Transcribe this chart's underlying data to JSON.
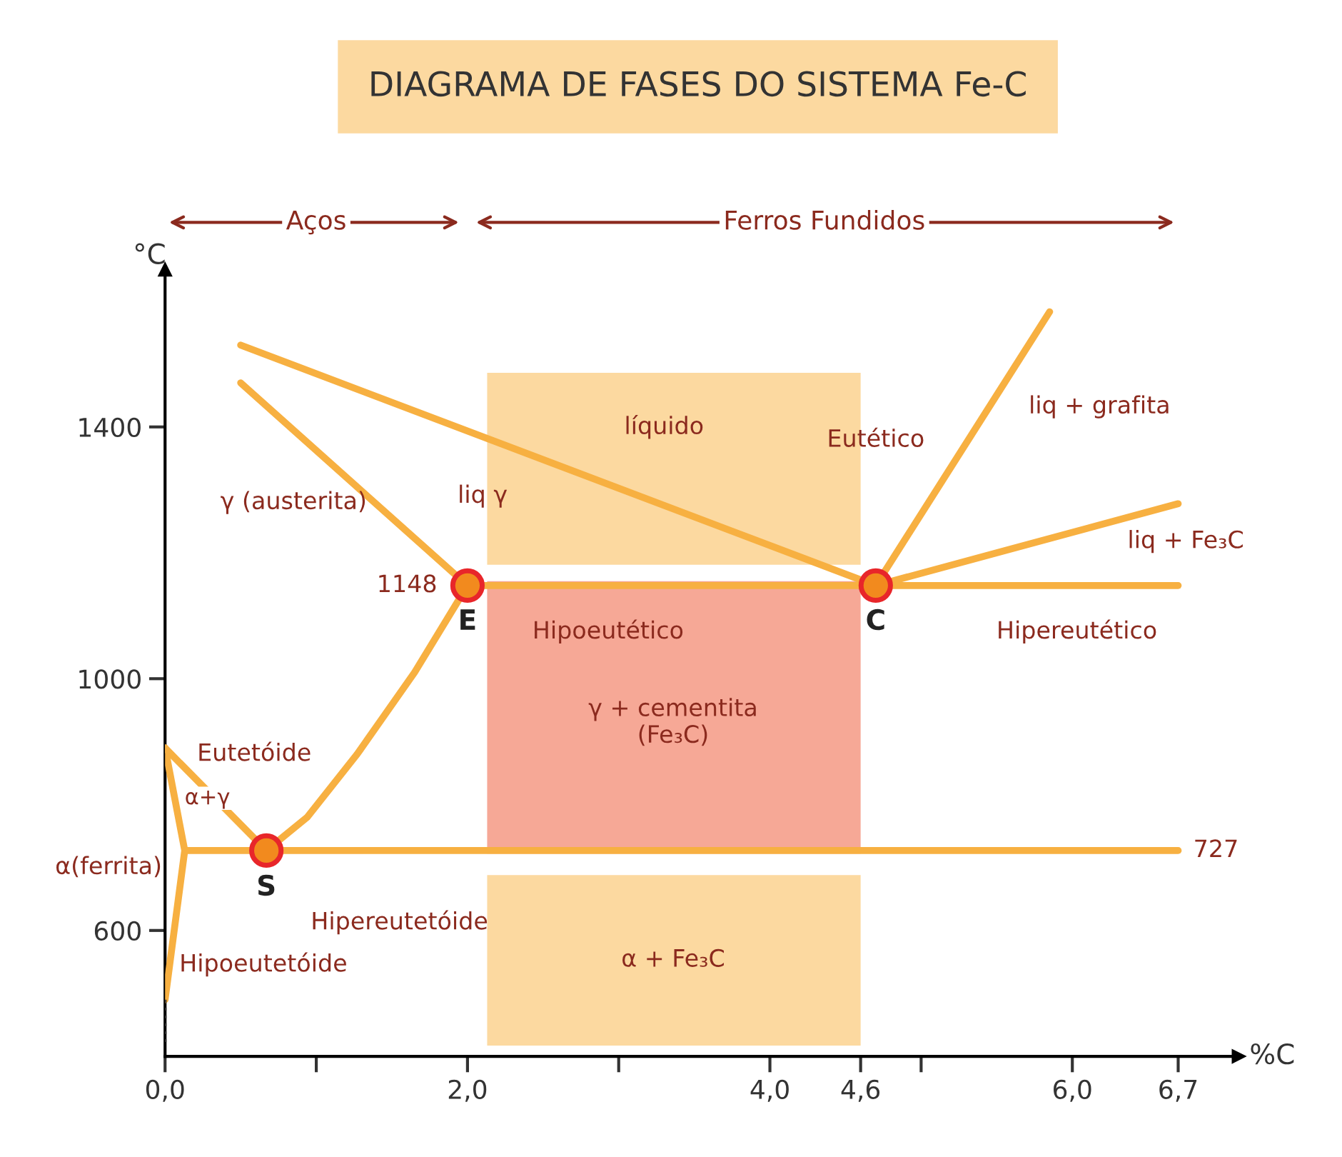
{
  "chart_data": {
    "type": "line",
    "title": "DIAGRAMA DE FASES DO SISTEMA Fe-C",
    "xlabel": "%C",
    "ylabel": "°C",
    "xlim": [
      0,
      7.1
    ],
    "ylim": [
      400,
      1650
    ],
    "xticks": [
      {
        "value": 0,
        "label": "0,0"
      },
      {
        "value": 1,
        "label": null
      },
      {
        "value": 2,
        "label": "2,0"
      },
      {
        "value": 3,
        "label": null
      },
      {
        "value": 4,
        "label": "4,0"
      },
      {
        "value": 4.6,
        "label": "4,6"
      },
      {
        "value": 5,
        "label": null
      },
      {
        "value": 6,
        "label": "6,0"
      },
      {
        "value": 6.7,
        "label": "6,7"
      }
    ],
    "yticks": [
      600,
      1000,
      1400
    ],
    "grid": false,
    "legend": false,
    "series": [
      {
        "color": "#f7b041",
        "x": [
          0.5,
          4.7
        ],
        "values": [
          1530,
          1148
        ]
      },
      {
        "color": "#f7b041",
        "x": [
          0.5,
          2.0
        ],
        "values": [
          1470,
          1148
        ]
      },
      {
        "color": "#f7b041",
        "x": [
          2.0,
          1.65,
          1.27,
          0.94,
          0.67
        ],
        "values": [
          1148,
          1010,
          880,
          780,
          727
        ]
      },
      {
        "color": "#f7b041",
        "x": [
          0,
          0.67
        ],
        "values": [
          890,
          727
        ]
      },
      {
        "color": "#f7b041",
        "x": [
          0,
          0.13,
          0
        ],
        "values": [
          890,
          727,
          490
        ]
      },
      {
        "color": "#333333",
        "line_style": "dotted",
        "x": [
          0,
          0
        ],
        "values": [
          490,
          420
        ]
      },
      {
        "color": "#f7b041",
        "x": [
          2.0,
          6.7
        ],
        "values": [
          1148,
          1148
        ]
      },
      {
        "color": "#f7b041",
        "x": [
          0.13,
          6.7
        ],
        "values": [
          727,
          727
        ]
      },
      {
        "color": "#f7b041",
        "x": [
          4.7,
          5.85
        ],
        "values": [
          1148,
          1583
        ]
      },
      {
        "color": "#f7b041",
        "x": [
          4.7,
          6.7
        ],
        "values": [
          1148,
          1278
        ]
      },
      {
        "type": "scatter",
        "color": "#f28a1e",
        "marker": "circle",
        "x": [
          2.0,
          4.7,
          0.67
        ],
        "values": [
          1148,
          1148,
          727
        ]
      }
    ],
    "annotations": [
      "Aços",
      "Ferros Fundidos",
      "líquido",
      "γ (austerita)",
      "liq γ",
      "liq + grafita",
      "liq + Fe₃C",
      "Eutético",
      "Hipoeutético",
      "Hipereutético",
      "γ + cementita\n(Fe₃C)",
      "α + Fe₃C",
      "α+γ",
      "α(ferrita)",
      "Eutetóide",
      "Hipereutetóide",
      "Hipoeutetóide",
      "1148",
      "727",
      "E",
      "C",
      "S"
    ]
  }
}
